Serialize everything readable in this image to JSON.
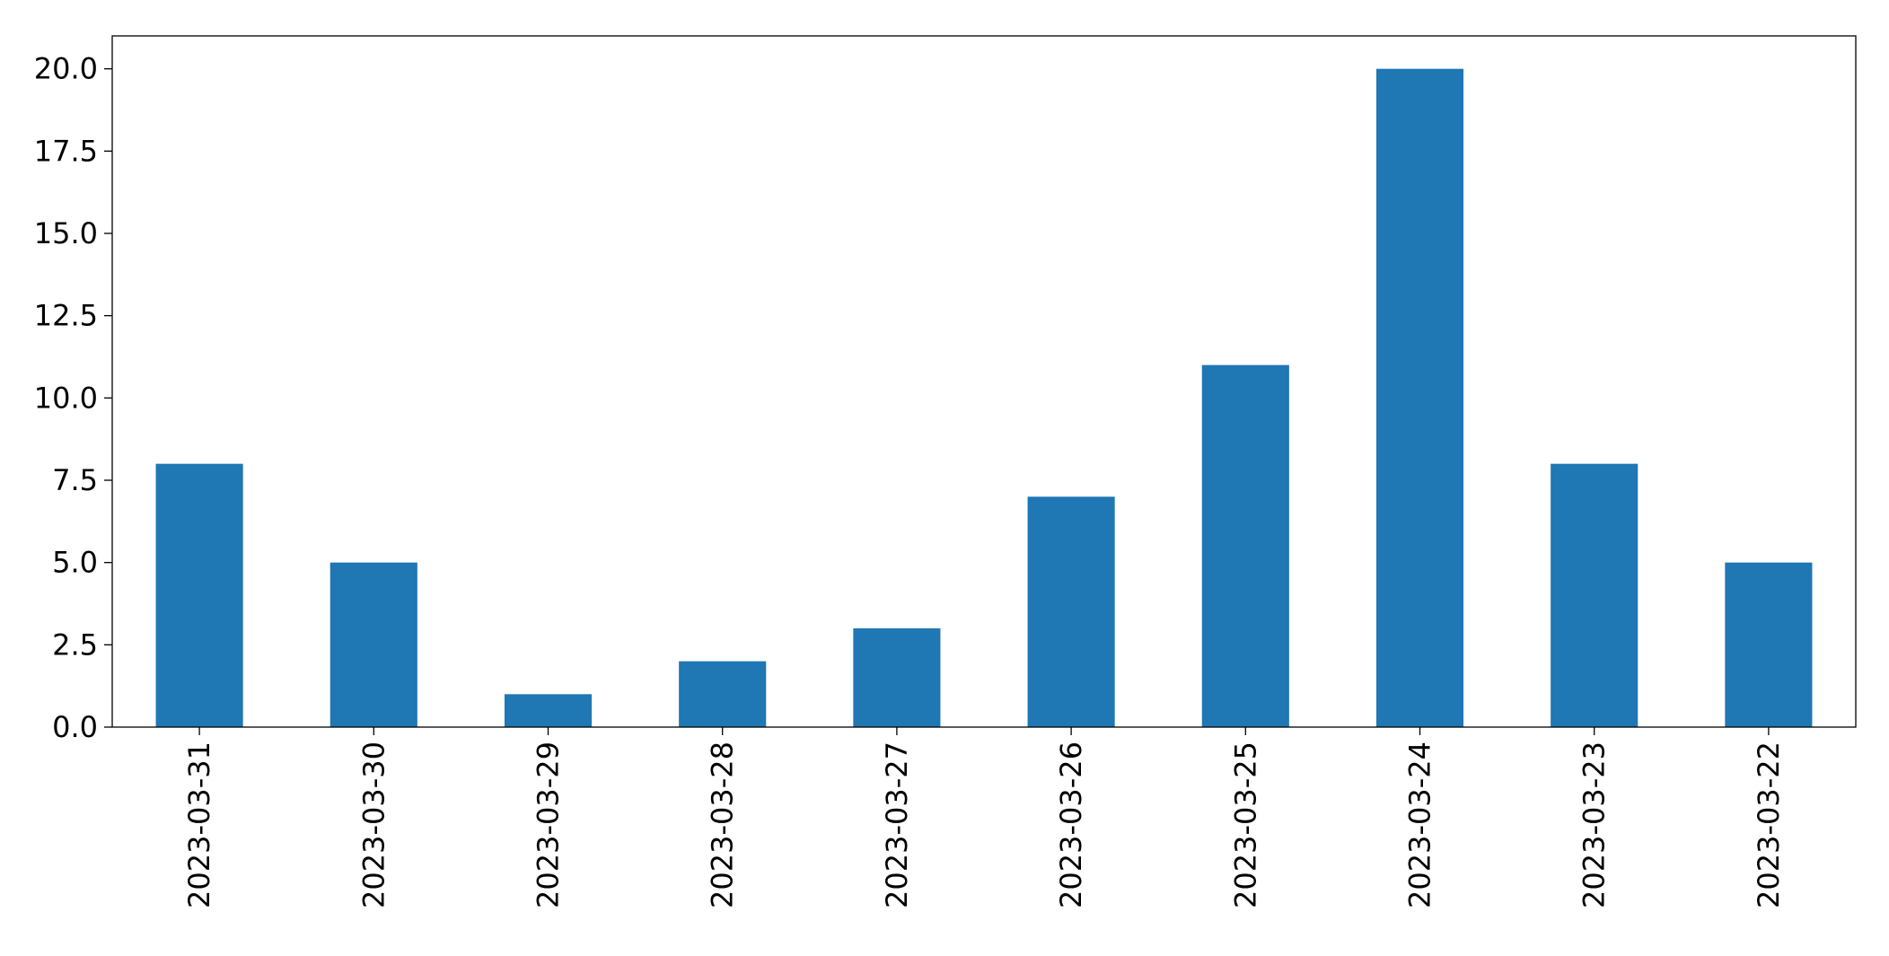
{
  "chart_data": {
    "type": "bar",
    "title": "",
    "xlabel": "",
    "ylabel": "",
    "categories": [
      "2023-03-31",
      "2023-03-30",
      "2023-03-29",
      "2023-03-28",
      "2023-03-27",
      "2023-03-26",
      "2023-03-25",
      "2023-03-24",
      "2023-03-23",
      "2023-03-22"
    ],
    "values": [
      8,
      5,
      1,
      2,
      3,
      7,
      11,
      20,
      8,
      5
    ],
    "ylim": [
      0,
      21
    ],
    "yticks": [
      0.0,
      2.5,
      5.0,
      7.5,
      10.0,
      12.5,
      15.0,
      17.5,
      20.0
    ],
    "ytick_labels": [
      "0.0",
      "2.5",
      "5.0",
      "7.5",
      "10.0",
      "12.5",
      "15.0",
      "17.5",
      "20.0"
    ],
    "x_tick_rotation": "vertical",
    "grid": false,
    "legend": "none",
    "bar_color": "#1f77b4"
  }
}
